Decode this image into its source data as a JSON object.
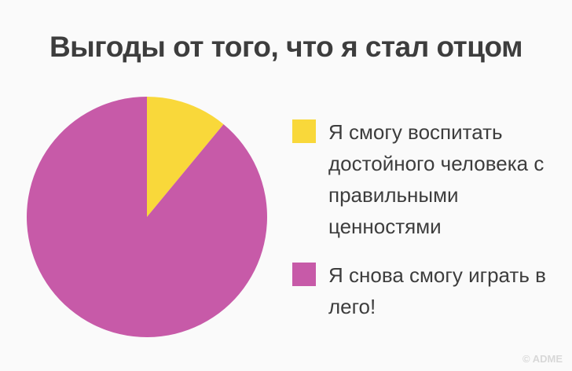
{
  "chart_data": {
    "type": "pie",
    "title": "Выгоды от того, что я стал отцом",
    "categories": [
      "Я смогу воспитать достойного человека с правильными ценностями",
      "Я снова смогу играть в лего!"
    ],
    "values": [
      11,
      89
    ],
    "colors": [
      "#f9d83a",
      "#c75aa8"
    ]
  },
  "watermark": "© ADME"
}
